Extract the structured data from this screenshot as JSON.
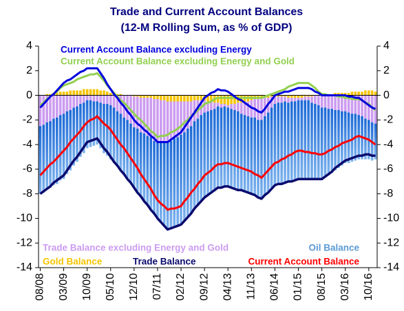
{
  "chart_data": {
    "type": "bar",
    "stacked": true,
    "title": [
      "Trade and Current Account Balances",
      "(12-M Rolling Sum, as % of GDP)"
    ],
    "categories": [
      "08/08",
      null,
      null,
      null,
      null,
      null,
      null,
      "03/09",
      null,
      null,
      null,
      null,
      null,
      null,
      "10/09",
      null,
      null,
      null,
      null,
      null,
      null,
      "05/10",
      null,
      null,
      null,
      null,
      null,
      null,
      "12/10",
      null,
      null,
      null,
      null,
      null,
      null,
      "07/11",
      null,
      null,
      null,
      null,
      null,
      null,
      "02/12",
      null,
      null,
      null,
      null,
      null,
      null,
      "09/12",
      null,
      null,
      null,
      null,
      null,
      null,
      "04/13",
      null,
      null,
      null,
      null,
      null,
      null,
      "11/13",
      null,
      null,
      null,
      null,
      null,
      null,
      "06/14",
      null,
      null,
      null,
      null,
      null,
      null,
      "01/15",
      null,
      null,
      null,
      null,
      null,
      null,
      "08/15",
      null,
      null,
      null,
      null,
      null,
      null,
      "03/16",
      null,
      null,
      null,
      null,
      null,
      null,
      "10/16",
      null,
      null
    ],
    "ylim": [
      -14,
      4
    ],
    "yticks": [
      -14,
      -12,
      -10,
      -8,
      -6,
      -4,
      -2,
      0,
      2,
      4
    ],
    "series": [
      {
        "name": "Gold Balance",
        "type": "bar",
        "color": "#f5c400",
        "values": [
          0.0,
          0.0,
          0.1,
          0.1,
          0.2,
          0.2,
          0.3,
          0.3,
          0.3,
          0.4,
          0.4,
          0.4,
          0.4,
          0.5,
          0.5,
          0.5,
          0.5,
          0.5,
          0.4,
          0.4,
          0.3,
          0.2,
          0.2,
          0.1,
          0.1,
          0.0,
          0.0,
          0.0,
          -0.1,
          -0.1,
          -0.2,
          -0.2,
          -0.2,
          -0.2,
          -0.3,
          -0.3,
          -0.4,
          -0.4,
          -0.5,
          -0.5,
          -0.5,
          -0.5,
          -0.5,
          -0.5,
          -0.5,
          -0.5,
          -0.4,
          -0.4,
          -0.4,
          -0.4,
          -0.5,
          -0.5,
          -0.6,
          -0.6,
          -0.7,
          -0.7,
          -0.8,
          -0.7,
          -0.7,
          -0.6,
          -0.6,
          -0.5,
          -0.5,
          -0.4,
          -0.3,
          -0.3,
          -0.2,
          -0.2,
          -0.2,
          -0.1,
          -0.1,
          -0.1,
          -0.1,
          -0.1,
          -0.2,
          -0.2,
          -0.2,
          -0.2,
          -0.2,
          -0.1,
          -0.1,
          -0.1,
          0.0,
          0.0,
          0.1,
          0.1,
          0.1,
          0.1,
          0.2,
          0.2,
          0.2,
          0.2,
          0.2,
          0.3,
          0.3,
          0.3,
          0.3,
          0.4,
          0.4,
          0.4,
          0.3
        ]
      },
      {
        "name": "Trade Balance excluding Energy and Gold",
        "type": "bar",
        "color": "#cc9cf0",
        "values": [
          -2.5,
          -2.4,
          -2.2,
          -2.1,
          -1.9,
          -1.8,
          -1.6,
          -1.5,
          -1.3,
          -1.2,
          -1.0,
          -0.9,
          -0.7,
          -0.6,
          -0.4,
          -0.4,
          -0.5,
          -0.5,
          -0.6,
          -0.7,
          -0.7,
          -0.8,
          -1.0,
          -1.3,
          -1.5,
          -1.8,
          -2.0,
          -2.3,
          -2.5,
          -2.6,
          -2.8,
          -2.9,
          -3.1,
          -3.2,
          -3.4,
          -3.5,
          -3.4,
          -3.4,
          -3.3,
          -3.2,
          -3.0,
          -2.9,
          -2.7,
          -2.5,
          -2.2,
          -2.0,
          -1.7,
          -1.5,
          -1.2,
          -1.0,
          -0.8,
          -0.7,
          -0.5,
          -0.3,
          -0.3,
          -0.2,
          -0.2,
          -0.4,
          -0.5,
          -0.7,
          -0.9,
          -1.1,
          -1.2,
          -1.4,
          -1.5,
          -1.7,
          -1.8,
          -1.5,
          -1.2,
          -0.9,
          -0.6,
          -0.5,
          -0.5,
          -0.4,
          -0.4,
          -0.3,
          -0.3,
          -0.2,
          -0.2,
          -0.3,
          -0.3,
          -0.5,
          -0.7,
          -0.8,
          -1.0,
          -1.0,
          -1.1,
          -1.1,
          -1.2,
          -1.2,
          -1.3,
          -1.3,
          -1.4,
          -1.5,
          -1.5,
          -1.6,
          -1.7,
          -1.9,
          -2.0,
          -2.2,
          -2.3
        ]
      },
      {
        "name": "Oil Balance",
        "type": "bar",
        "color": "#1a68d6",
        "values": [
          -5.5,
          -5.5,
          -5.4,
          -5.4,
          -5.4,
          -5.4,
          -5.3,
          -5.3,
          -5.1,
          -4.9,
          -4.7,
          -4.5,
          -4.3,
          -4.1,
          -3.9,
          -3.8,
          -3.6,
          -3.5,
          -3.7,
          -4.0,
          -4.2,
          -4.4,
          -4.5,
          -4.5,
          -4.6,
          -4.7,
          -4.8,
          -4.8,
          -4.9,
          -5.1,
          -5.3,
          -5.5,
          -5.6,
          -5.8,
          -6.0,
          -6.2,
          -6.5,
          -6.8,
          -7.1,
          -7.2,
          -7.2,
          -7.3,
          -7.3,
          -7.2,
          -7.2,
          -7.1,
          -7.1,
          -7.0,
          -7.0,
          -6.9,
          -6.8,
          -6.8,
          -6.7,
          -6.6,
          -6.5,
          -6.5,
          -6.4,
          -6.4,
          -6.3,
          -6.3,
          -6.3,
          -6.3,
          -6.2,
          -6.2,
          -6.3,
          -6.3,
          -6.4,
          -6.5,
          -6.5,
          -6.6,
          -6.6,
          -6.6,
          -6.5,
          -6.5,
          -6.5,
          -6.5,
          -6.4,
          -6.4,
          -6.4,
          -6.4,
          -6.4,
          -6.3,
          -6.2,
          -6.0,
          -5.9,
          -5.7,
          -5.4,
          -5.2,
          -4.9,
          -4.7,
          -4.4,
          -4.2,
          -4.1,
          -3.9,
          -3.8,
          -3.6,
          -3.5,
          -3.3,
          -3.2,
          -3.1,
          -2.9
        ]
      },
      {
        "name": "Trade Balance",
        "type": "line",
        "color": "#0a0a6e",
        "values": [
          -8.0,
          -7.8,
          -7.6,
          -7.4,
          -7.1,
          -6.9,
          -6.7,
          -6.5,
          -6.1,
          -5.7,
          -5.3,
          -5.0,
          -4.6,
          -4.2,
          -3.8,
          -3.7,
          -3.6,
          -3.5,
          -3.9,
          -4.3,
          -4.6,
          -5.0,
          -5.4,
          -5.7,
          -6.1,
          -6.4,
          -6.8,
          -7.1,
          -7.5,
          -7.9,
          -8.2,
          -8.6,
          -8.9,
          -9.3,
          -9.6,
          -10.0,
          -10.3,
          -10.6,
          -10.9,
          -10.8,
          -10.7,
          -10.6,
          -10.5,
          -10.2,
          -9.9,
          -9.6,
          -9.2,
          -8.9,
          -8.6,
          -8.3,
          -8.1,
          -7.9,
          -7.7,
          -7.5,
          -7.5,
          -7.4,
          -7.4,
          -7.5,
          -7.6,
          -7.7,
          -7.7,
          -7.8,
          -7.9,
          -8.0,
          -8.1,
          -8.3,
          -8.4,
          -8.1,
          -7.9,
          -7.6,
          -7.3,
          -7.2,
          -7.2,
          -7.1,
          -7.0,
          -7.0,
          -6.9,
          -6.8,
          -6.8,
          -6.8,
          -6.8,
          -6.8,
          -6.8,
          -6.8,
          -6.8,
          -6.6,
          -6.4,
          -6.2,
          -5.9,
          -5.7,
          -5.5,
          -5.3,
          -5.2,
          -5.1,
          -5.0,
          -4.9,
          -4.9,
          -4.8,
          -4.8,
          -4.9,
          -4.9
        ]
      },
      {
        "name": "Current Account Balance",
        "type": "line",
        "color": "#ff0000",
        "values": [
          -6.5,
          -6.2,
          -5.9,
          -5.6,
          -5.4,
          -5.1,
          -4.8,
          -4.5,
          -4.2,
          -3.8,
          -3.5,
          -3.2,
          -2.9,
          -2.5,
          -2.2,
          -2.0,
          -1.9,
          -1.7,
          -2.0,
          -2.3,
          -2.5,
          -2.8,
          -3.2,
          -3.6,
          -4.0,
          -4.3,
          -4.7,
          -5.1,
          -5.5,
          -5.9,
          -6.4,
          -6.8,
          -7.2,
          -7.6,
          -8.1,
          -8.5,
          -8.8,
          -9.0,
          -9.3,
          -9.2,
          -9.2,
          -9.1,
          -9.0,
          -8.6,
          -8.3,
          -7.9,
          -7.6,
          -7.2,
          -6.9,
          -6.5,
          -6.3,
          -6.1,
          -5.8,
          -5.6,
          -5.6,
          -5.5,
          -5.5,
          -5.6,
          -5.7,
          -5.8,
          -5.9,
          -6.0,
          -6.1,
          -6.2,
          -6.4,
          -6.5,
          -6.7,
          -6.4,
          -6.1,
          -5.8,
          -5.5,
          -5.4,
          -5.2,
          -5.1,
          -4.9,
          -4.8,
          -4.6,
          -4.5,
          -4.5,
          -4.6,
          -4.6,
          -4.7,
          -4.7,
          -4.8,
          -4.8,
          -4.7,
          -4.5,
          -4.4,
          -4.2,
          -4.1,
          -3.9,
          -3.8,
          -3.7,
          -3.6,
          -3.4,
          -3.3,
          -3.4,
          -3.5,
          -3.6,
          -3.8,
          -4.0
        ]
      },
      {
        "name": "Current Account Balance excluding Energy and Gold",
        "type": "line",
        "color": "#92d050",
        "values": [
          -0.8,
          -0.6,
          -0.3,
          -0.1,
          0.1,
          0.3,
          0.6,
          0.8,
          0.9,
          1.0,
          1.1,
          1.3,
          1.4,
          1.5,
          1.6,
          1.7,
          1.7,
          1.8,
          1.5,
          1.2,
          0.8,
          0.5,
          0.2,
          -0.1,
          -0.4,
          -0.6,
          -0.9,
          -1.2,
          -1.5,
          -1.8,
          -2.0,
          -2.3,
          -2.6,
          -2.9,
          -3.1,
          -3.4,
          -3.3,
          -3.3,
          -3.2,
          -3.0,
          -2.9,
          -2.7,
          -2.5,
          -2.2,
          -2.0,
          -1.7,
          -1.5,
          -1.2,
          -1.0,
          -0.7,
          -0.6,
          -0.5,
          -0.3,
          -0.2,
          -0.2,
          -0.2,
          -0.2,
          -0.2,
          -0.2,
          -0.2,
          -0.2,
          -0.2,
          -0.2,
          -0.2,
          -0.2,
          -0.2,
          -0.2,
          -0.1,
          0.0,
          0.1,
          0.2,
          0.3,
          0.4,
          0.5,
          0.7,
          0.8,
          0.9,
          1.0,
          1.0,
          1.0,
          1.0,
          0.8,
          0.6,
          0.3,
          0.1,
          0.1,
          0.0,
          0.0,
          0.0,
          -0.1,
          -0.1,
          -0.2,
          -0.2,
          -0.3,
          -0.3,
          -0.3,
          -0.4,
          -0.6,
          -0.7,
          -1.0,
          -1.2
        ]
      },
      {
        "name": "Current Account Balance excluding Energy",
        "type": "line",
        "color": "#0000dd",
        "values": [
          -1.0,
          -0.7,
          -0.4,
          -0.1,
          0.1,
          0.4,
          0.7,
          1.0,
          1.2,
          1.3,
          1.5,
          1.7,
          1.9,
          2.0,
          2.2,
          2.2,
          2.2,
          2.2,
          1.8,
          1.4,
          0.9,
          0.5,
          0.1,
          -0.2,
          -0.6,
          -0.9,
          -1.3,
          -1.6,
          -2.0,
          -2.3,
          -2.5,
          -2.8,
          -3.0,
          -3.3,
          -3.5,
          -3.8,
          -3.8,
          -3.8,
          -3.8,
          -3.6,
          -3.4,
          -3.2,
          -3.0,
          -2.6,
          -2.2,
          -1.8,
          -1.4,
          -1.0,
          -0.6,
          -0.2,
          0.0,
          0.2,
          0.3,
          0.5,
          0.4,
          0.4,
          0.3,
          0.1,
          -0.1,
          -0.3,
          -0.4,
          -0.6,
          -0.8,
          -1.0,
          -1.1,
          -1.3,
          -1.4,
          -1.1,
          -0.7,
          -0.4,
          0.0,
          0.1,
          0.2,
          0.3,
          0.3,
          0.4,
          0.5,
          0.6,
          0.6,
          0.6,
          0.6,
          0.5,
          0.3,
          0.2,
          0.0,
          0.0,
          0.0,
          0.0,
          0.0,
          0.0,
          0.0,
          0.0,
          -0.1,
          -0.1,
          -0.2,
          -0.2,
          -0.4,
          -0.6,
          -0.8,
          -1.0,
          -1.1
        ]
      }
    ]
  }
}
